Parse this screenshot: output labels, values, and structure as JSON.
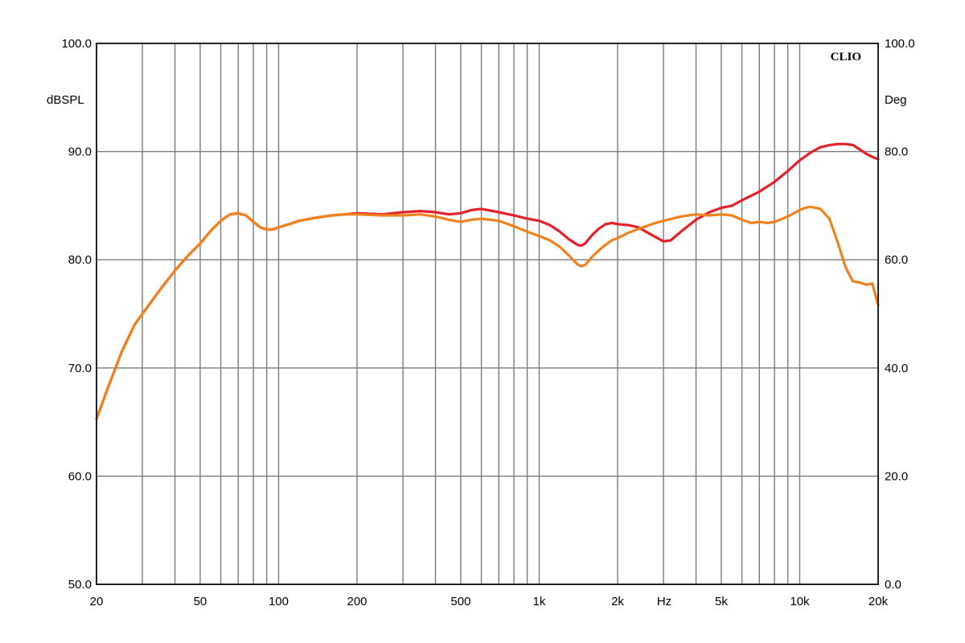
{
  "chart_data": {
    "type": "line",
    "brand": "CLIO",
    "left_unit": "dBSPL",
    "right_unit": "Deg",
    "x_unit_label": "Hz",
    "x_scale": "log",
    "xlim": [
      20,
      20000
    ],
    "ylim_left": [
      50,
      100
    ],
    "ylim_right": [
      0,
      100
    ],
    "grid": true,
    "y_ticks_left": [
      {
        "value": 50,
        "label": "50.0"
      },
      {
        "value": 60,
        "label": "60.0"
      },
      {
        "value": 70,
        "label": "70.0"
      },
      {
        "value": 80,
        "label": "80.0"
      },
      {
        "value": 90,
        "label": "90.0"
      },
      {
        "value": 100,
        "label": "100.0"
      }
    ],
    "y_ticks_right": [
      {
        "value": 0,
        "label": "0.0"
      },
      {
        "value": 20,
        "label": "20.0"
      },
      {
        "value": 40,
        "label": "40.0"
      },
      {
        "value": 60,
        "label": "60.0"
      },
      {
        "value": 80,
        "label": "80.0"
      },
      {
        "value": 100,
        "label": "100.0"
      }
    ],
    "x_ticks": [
      {
        "value": 20,
        "label": "20"
      },
      {
        "value": 50,
        "label": "50"
      },
      {
        "value": 100,
        "label": "100"
      },
      {
        "value": 200,
        "label": "200"
      },
      {
        "value": 500,
        "label": "500"
      },
      {
        "value": 1000,
        "label": "1k"
      },
      {
        "value": 2000,
        "label": "2k"
      },
      {
        "value": 5000,
        "label": "5k"
      },
      {
        "value": 10000,
        "label": "10k"
      },
      {
        "value": 20000,
        "label": "20k"
      }
    ],
    "x_gridlines": [
      20,
      30,
      40,
      50,
      60,
      70,
      80,
      90,
      100,
      200,
      300,
      400,
      500,
      600,
      700,
      800,
      900,
      1000,
      2000,
      3000,
      4000,
      5000,
      6000,
      7000,
      8000,
      9000,
      10000,
      20000
    ],
    "series": [
      {
        "color": "#e3212b",
        "points": [
          [
            20,
            65.3
          ],
          [
            22,
            68.0
          ],
          [
            25,
            71.5
          ],
          [
            28,
            74.0
          ],
          [
            30,
            75.0
          ],
          [
            35,
            77.2
          ],
          [
            40,
            79.0
          ],
          [
            45,
            80.4
          ],
          [
            50,
            81.5
          ],
          [
            55,
            82.7
          ],
          [
            60,
            83.6
          ],
          [
            65,
            84.2
          ],
          [
            70,
            84.3
          ],
          [
            75,
            84.1
          ],
          [
            80,
            83.5
          ],
          [
            85,
            83.0
          ],
          [
            90,
            82.8
          ],
          [
            95,
            82.8
          ],
          [
            100,
            83.0
          ],
          [
            110,
            83.3
          ],
          [
            120,
            83.6
          ],
          [
            140,
            83.9
          ],
          [
            160,
            84.1
          ],
          [
            180,
            84.2
          ],
          [
            200,
            84.3
          ],
          [
            250,
            84.2
          ],
          [
            300,
            84.4
          ],
          [
            350,
            84.5
          ],
          [
            400,
            84.4
          ],
          [
            450,
            84.2
          ],
          [
            500,
            84.3
          ],
          [
            550,
            84.6
          ],
          [
            600,
            84.7
          ],
          [
            700,
            84.4
          ],
          [
            800,
            84.1
          ],
          [
            900,
            83.8
          ],
          [
            1000,
            83.6
          ],
          [
            1100,
            83.2
          ],
          [
            1200,
            82.6
          ],
          [
            1300,
            81.9
          ],
          [
            1400,
            81.4
          ],
          [
            1450,
            81.3
          ],
          [
            1500,
            81.5
          ],
          [
            1600,
            82.3
          ],
          [
            1700,
            82.9
          ],
          [
            1800,
            83.3
          ],
          [
            1900,
            83.4
          ],
          [
            2000,
            83.3
          ],
          [
            2200,
            83.2
          ],
          [
            2400,
            83.0
          ],
          [
            2700,
            82.3
          ],
          [
            3000,
            81.7
          ],
          [
            3200,
            81.8
          ],
          [
            3500,
            82.6
          ],
          [
            4000,
            83.7
          ],
          [
            4500,
            84.4
          ],
          [
            5000,
            84.8
          ],
          [
            5500,
            85.0
          ],
          [
            6000,
            85.5
          ],
          [
            7000,
            86.3
          ],
          [
            8000,
            87.2
          ],
          [
            9000,
            88.2
          ],
          [
            10000,
            89.2
          ],
          [
            11000,
            89.9
          ],
          [
            12000,
            90.4
          ],
          [
            13000,
            90.6
          ],
          [
            14000,
            90.7
          ],
          [
            15000,
            90.7
          ],
          [
            16000,
            90.6
          ],
          [
            17000,
            90.2
          ],
          [
            18000,
            89.8
          ],
          [
            19000,
            89.5
          ],
          [
            20000,
            89.3
          ]
        ]
      },
      {
        "color": "#f0821e",
        "points": [
          [
            20,
            65.3
          ],
          [
            22,
            68.0
          ],
          [
            25,
            71.5
          ],
          [
            28,
            74.0
          ],
          [
            30,
            75.0
          ],
          [
            35,
            77.2
          ],
          [
            40,
            79.0
          ],
          [
            45,
            80.4
          ],
          [
            50,
            81.5
          ],
          [
            55,
            82.7
          ],
          [
            60,
            83.6
          ],
          [
            65,
            84.2
          ],
          [
            70,
            84.3
          ],
          [
            75,
            84.1
          ],
          [
            80,
            83.5
          ],
          [
            85,
            83.0
          ],
          [
            90,
            82.8
          ],
          [
            95,
            82.8
          ],
          [
            100,
            83.0
          ],
          [
            110,
            83.3
          ],
          [
            120,
            83.6
          ],
          [
            140,
            83.9
          ],
          [
            160,
            84.1
          ],
          [
            180,
            84.2
          ],
          [
            200,
            84.2
          ],
          [
            250,
            84.1
          ],
          [
            300,
            84.1
          ],
          [
            350,
            84.2
          ],
          [
            400,
            84.0
          ],
          [
            450,
            83.7
          ],
          [
            500,
            83.5
          ],
          [
            550,
            83.7
          ],
          [
            600,
            83.8
          ],
          [
            700,
            83.6
          ],
          [
            800,
            83.1
          ],
          [
            900,
            82.6
          ],
          [
            1000,
            82.2
          ],
          [
            1100,
            81.8
          ],
          [
            1200,
            81.2
          ],
          [
            1300,
            80.4
          ],
          [
            1400,
            79.6
          ],
          [
            1450,
            79.4
          ],
          [
            1500,
            79.5
          ],
          [
            1600,
            80.3
          ],
          [
            1700,
            80.9
          ],
          [
            1800,
            81.4
          ],
          [
            1900,
            81.8
          ],
          [
            2000,
            82.0
          ],
          [
            2200,
            82.5
          ],
          [
            2500,
            83.0
          ],
          [
            2800,
            83.4
          ],
          [
            3000,
            83.6
          ],
          [
            3500,
            84.0
          ],
          [
            4000,
            84.2
          ],
          [
            4500,
            84.1
          ],
          [
            5000,
            84.2
          ],
          [
            5500,
            84.1
          ],
          [
            6000,
            83.7
          ],
          [
            6500,
            83.4
          ],
          [
            7000,
            83.5
          ],
          [
            7500,
            83.4
          ],
          [
            8000,
            83.5
          ],
          [
            9000,
            84.0
          ],
          [
            10000,
            84.6
          ],
          [
            10500,
            84.8
          ],
          [
            11000,
            84.9
          ],
          [
            12000,
            84.7
          ],
          [
            13000,
            83.8
          ],
          [
            14000,
            81.6
          ],
          [
            15000,
            79.3
          ],
          [
            16000,
            78.0
          ],
          [
            17000,
            77.9
          ],
          [
            18000,
            77.7
          ],
          [
            19000,
            77.8
          ],
          [
            20000,
            75.8
          ]
        ]
      }
    ]
  }
}
